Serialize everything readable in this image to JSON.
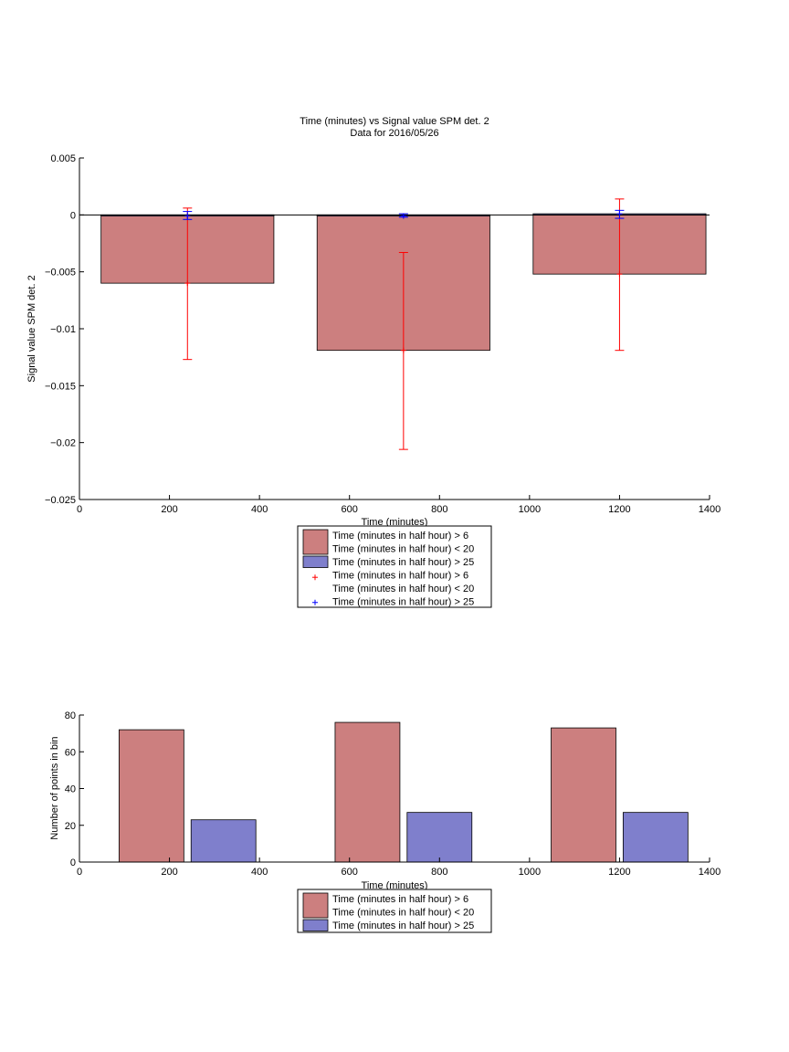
{
  "chart_data": [
    {
      "type": "bar",
      "title": "Time (minutes) vs Signal value SPM det. 2",
      "subtitle": "Data for 2016/05/26",
      "xlabel": "Time (minutes)",
      "ylabel": "Signal value SPM det. 2",
      "xlim": [
        0,
        1400
      ],
      "ylim": [
        -0.025,
        0.005
      ],
      "xticks": [
        0,
        200,
        400,
        600,
        800,
        1000,
        1200,
        1400
      ],
      "xtick_labels": [
        "0",
        "200",
        "400",
        "600",
        "800",
        "1000",
        "1200",
        "1400"
      ],
      "yticks": [
        -0.025,
        -0.02,
        -0.015,
        -0.01,
        -0.005,
        0,
        0.005
      ],
      "ytick_labels": [
        "−0.025",
        "−0.02",
        "−0.015",
        "−0.01",
        "−0.005",
        "0",
        "0.005"
      ],
      "bar_width": 384,
      "series": [
        {
          "name": "Time (minutes in half hour) > 6\nTime (minutes in half hour) < 20",
          "color": "#cc7f7f",
          "x": [
            240,
            720,
            1200
          ],
          "values": [
            -0.006,
            -0.0119,
            -0.0052
          ],
          "err_low": [
            -0.0127,
            -0.0206,
            -0.0119
          ],
          "err_high": [
            0.0006,
            -0.0033,
            0.0014
          ],
          "err_color": "#ff0000"
        },
        {
          "name": "Time (minutes in half hour) > 25",
          "color": "#7f7fcc",
          "x": [
            240,
            720,
            1200
          ],
          "values": [
            -0.0001,
            -0.0001,
            0.0001
          ],
          "err_low": [
            -0.0004,
            -0.0002,
            -0.0003
          ],
          "err_high": [
            0.0003,
            0.0001,
            0.0004
          ],
          "err_color": "#0000ff"
        }
      ],
      "legend": {
        "placement": "below",
        "entries": [
          {
            "kind": "patch",
            "color": "#cc7f7f",
            "lines": [
              "Time (minutes in half hour) > 6",
              "Time (minutes in half hour) < 20"
            ]
          },
          {
            "kind": "patch",
            "color": "#7f7fcc",
            "lines": [
              "Time (minutes in half hour) > 25"
            ]
          },
          {
            "kind": "marker",
            "color": "#ff0000",
            "lines": [
              "Time (minutes in half hour) > 6",
              "Time (minutes in half hour) < 20"
            ]
          },
          {
            "kind": "marker",
            "color": "#0000ff",
            "lines": [
              "Time (minutes in half hour) > 25"
            ]
          }
        ]
      }
    },
    {
      "type": "bar",
      "title": "",
      "xlabel": "Time (minutes)",
      "ylabel": "Number of points in bin",
      "xlim": [
        0,
        1400
      ],
      "ylim": [
        0,
        80
      ],
      "xticks": [
        0,
        200,
        400,
        600,
        800,
        1000,
        1200,
        1400
      ],
      "xtick_labels": [
        "0",
        "200",
        "400",
        "600",
        "800",
        "1000",
        "1200",
        "1400"
      ],
      "yticks": [
        0,
        20,
        40,
        60,
        80
      ],
      "ytick_labels": [
        "0",
        "20",
        "40",
        "60",
        "80"
      ],
      "bar_width": 144,
      "series": [
        {
          "name": "Time (minutes in half hour) > 6\nTime (minutes in half hour) < 20",
          "color": "#cc7f7f",
          "x": [
            160,
            640,
            1120
          ],
          "values": [
            72,
            76,
            73
          ]
        },
        {
          "name": "Time (minutes in half hour) > 25",
          "color": "#7f7fcc",
          "x": [
            320,
            800,
            1280
          ],
          "values": [
            23,
            27,
            27
          ]
        }
      ],
      "legend": {
        "placement": "below",
        "entries": [
          {
            "kind": "patch",
            "color": "#cc7f7f",
            "lines": [
              "Time (minutes in half hour) > 6",
              "Time (minutes in half hour) < 20"
            ]
          },
          {
            "kind": "patch",
            "color": "#7f7fcc",
            "lines": [
              "Time (minutes in half hour) > 25"
            ]
          }
        ]
      }
    }
  ]
}
